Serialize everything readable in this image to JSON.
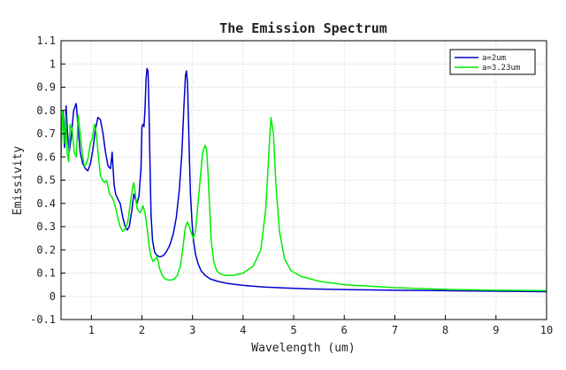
{
  "chart_data": {
    "type": "line",
    "title": "The Emission Spectrum",
    "xlabel": "Wavelength (um)",
    "ylabel": "Emissivity",
    "xlim": [
      0.4,
      10
    ],
    "ylim": [
      -0.1,
      1.1
    ],
    "x_ticks": [
      "1",
      "2",
      "3",
      "4",
      "5",
      "6",
      "7",
      "8",
      "9",
      "10"
    ],
    "y_ticks": [
      "-0.1",
      "0",
      "0.1",
      "0.2",
      "0.3",
      "0.4",
      "0.5",
      "0.6",
      "0.7",
      "0.8",
      "0.9",
      "1",
      "1.1"
    ],
    "grid": true,
    "legend_position": "top-right",
    "series": [
      {
        "name": "a=2um",
        "color": "#0000cc",
        "x": [
          0.4,
          0.44,
          0.47,
          0.5,
          0.53,
          0.56,
          0.6,
          0.65,
          0.7,
          0.74,
          0.78,
          0.83,
          0.88,
          0.93,
          0.98,
          1.03,
          1.08,
          1.13,
          1.18,
          1.23,
          1.28,
          1.33,
          1.38,
          1.41,
          1.43,
          1.45,
          1.48,
          1.52,
          1.57,
          1.62,
          1.67,
          1.71,
          1.75,
          1.8,
          1.84,
          1.87,
          1.9,
          1.94,
          1.98,
          2.0,
          2.02,
          2.04,
          2.06,
          2.08,
          2.1,
          2.12,
          2.14,
          2.16,
          2.18,
          2.21,
          2.25,
          2.3,
          2.36,
          2.42,
          2.48,
          2.55,
          2.62,
          2.68,
          2.74,
          2.79,
          2.83,
          2.86,
          2.88,
          2.9,
          2.92,
          2.94,
          2.96,
          2.99,
          3.02,
          3.06,
          3.11,
          3.17,
          3.25,
          3.35,
          3.5,
          3.7,
          4.0,
          4.4,
          4.8,
          5.3,
          6.0,
          7.0,
          8.0,
          9.0,
          10.0
        ],
        "y": [
          0.72,
          0.8,
          0.64,
          0.82,
          0.7,
          0.62,
          0.68,
          0.8,
          0.83,
          0.72,
          0.62,
          0.57,
          0.55,
          0.54,
          0.57,
          0.63,
          0.72,
          0.77,
          0.76,
          0.7,
          0.62,
          0.56,
          0.55,
          0.62,
          0.55,
          0.48,
          0.44,
          0.42,
          0.4,
          0.34,
          0.3,
          0.285,
          0.3,
          0.37,
          0.44,
          0.42,
          0.4,
          0.43,
          0.55,
          0.73,
          0.74,
          0.73,
          0.8,
          0.93,
          0.98,
          0.97,
          0.8,
          0.55,
          0.35,
          0.24,
          0.19,
          0.175,
          0.17,
          0.175,
          0.19,
          0.22,
          0.27,
          0.34,
          0.46,
          0.62,
          0.82,
          0.95,
          0.97,
          0.92,
          0.76,
          0.58,
          0.44,
          0.32,
          0.24,
          0.18,
          0.14,
          0.11,
          0.09,
          0.075,
          0.064,
          0.055,
          0.047,
          0.04,
          0.036,
          0.032,
          0.029,
          0.026,
          0.024,
          0.022,
          0.02
        ]
      },
      {
        "name": "a=3.23um",
        "color": "#00ee00",
        "x": [
          0.4,
          0.43,
          0.46,
          0.49,
          0.52,
          0.55,
          0.58,
          0.62,
          0.66,
          0.7,
          0.74,
          0.78,
          0.82,
          0.86,
          0.9,
          0.94,
          0.98,
          1.02,
          1.06,
          1.1,
          1.14,
          1.18,
          1.22,
          1.26,
          1.3,
          1.33,
          1.36,
          1.4,
          1.44,
          1.48,
          1.52,
          1.57,
          1.62,
          1.67,
          1.72,
          1.77,
          1.81,
          1.84,
          1.87,
          1.9,
          1.93,
          1.96,
          1.99,
          2.02,
          2.06,
          2.1,
          2.14,
          2.18,
          2.22,
          2.26,
          2.3,
          2.35,
          2.4,
          2.46,
          2.52,
          2.58,
          2.64,
          2.7,
          2.76,
          2.81,
          2.86,
          2.9,
          2.94,
          2.98,
          3.02,
          3.06,
          3.1,
          3.15,
          3.2,
          3.25,
          3.28,
          3.31,
          3.34,
          3.37,
          3.42,
          3.48,
          3.56,
          3.66,
          3.8,
          4.0,
          4.2,
          4.35,
          4.45,
          4.5,
          4.55,
          4.6,
          4.65,
          4.72,
          4.82,
          4.95,
          5.15,
          5.5,
          6.0,
          7.0,
          8.0,
          9.0,
          10.0
        ],
        "y": [
          0.6,
          0.8,
          0.66,
          0.78,
          0.62,
          0.58,
          0.74,
          0.72,
          0.62,
          0.6,
          0.78,
          0.7,
          0.62,
          0.56,
          0.57,
          0.6,
          0.66,
          0.68,
          0.74,
          0.7,
          0.6,
          0.52,
          0.5,
          0.49,
          0.5,
          0.47,
          0.44,
          0.43,
          0.41,
          0.38,
          0.34,
          0.3,
          0.28,
          0.29,
          0.32,
          0.4,
          0.46,
          0.49,
          0.44,
          0.38,
          0.37,
          0.36,
          0.37,
          0.39,
          0.36,
          0.3,
          0.22,
          0.17,
          0.15,
          0.16,
          0.17,
          0.12,
          0.09,
          0.075,
          0.07,
          0.07,
          0.075,
          0.09,
          0.13,
          0.21,
          0.3,
          0.32,
          0.3,
          0.27,
          0.25,
          0.28,
          0.38,
          0.5,
          0.62,
          0.65,
          0.63,
          0.52,
          0.38,
          0.24,
          0.15,
          0.11,
          0.095,
          0.09,
          0.09,
          0.1,
          0.13,
          0.2,
          0.38,
          0.58,
          0.77,
          0.7,
          0.48,
          0.28,
          0.16,
          0.11,
          0.085,
          0.065,
          0.05,
          0.037,
          0.03,
          0.026,
          0.024
        ]
      }
    ]
  }
}
